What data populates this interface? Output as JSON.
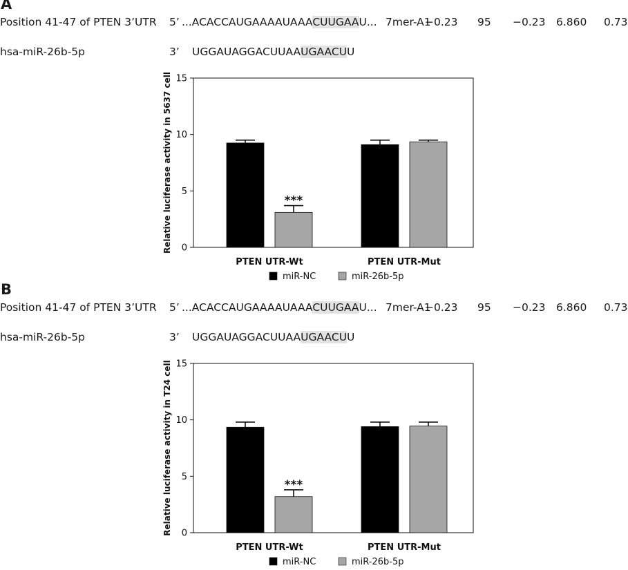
{
  "panels": [
    {
      "letter": "A",
      "site_label": "Position 41-47 of PTEN 3’UTR",
      "site_prime": "5’",
      "site_seq_pre": "...ACACCAUGAAAAUAAA",
      "site_seq_hl": "CUUGAA",
      "site_seq_post": "U...",
      "context": "7mer-A1",
      "score1": "−0.23",
      "score2": "95",
      "score3": "−0.23",
      "score4": "6.860",
      "score5": "0.73",
      "mir_label": "hsa-miR-26b-5p",
      "mir_prime": "3’",
      "mir_seq_pre": "UGGAUAGGACUUAA",
      "mir_seq_hl": "UGAACU",
      "mir_seq_post": "U"
    },
    {
      "letter": "B",
      "site_label": "Position 41-47 of PTEN 3’UTR",
      "site_prime": "5’",
      "site_seq_pre": "...ACACCAUGAAAAUAAA",
      "site_seq_hl": "CUUGAA",
      "site_seq_post": "U...",
      "context": "7mer-A1",
      "score1": "−0.23",
      "score2": "95",
      "score3": "−0.23",
      "score4": "6.860",
      "score5": "0.73",
      "mir_label": "hsa-miR-26b-5p",
      "mir_prime": "3’",
      "mir_seq_pre": "UGGAUAGGACUUAA",
      "mir_seq_hl": "UGAACU",
      "mir_seq_post": "U"
    }
  ],
  "chart_data": [
    {
      "type": "bar",
      "title": "",
      "xlabel": "",
      "ylabel": "Relative luciferase activity in 5637 cell",
      "ylim": [
        0,
        15
      ],
      "yticks": [
        "0",
        "5",
        "10",
        "15"
      ],
      "categories": [
        "PTEN UTR-Wt",
        "PTEN UTR-Mut"
      ],
      "series": [
        {
          "name": "miR-NC",
          "color": "#000000",
          "values": [
            9.25,
            9.1
          ],
          "errors": [
            0.25,
            0.4
          ]
        },
        {
          "name": "miR-26b-5p",
          "color": "#a6a6a6",
          "values": [
            3.1,
            9.35
          ],
          "errors": [
            0.6,
            0.15
          ]
        }
      ],
      "annotations": [
        {
          "text": "***",
          "category": 0,
          "series": 1
        }
      ],
      "legend_position": "bottom",
      "grid": false
    },
    {
      "type": "bar",
      "title": "",
      "xlabel": "",
      "ylabel": "Relative luciferase activity in T24 cell",
      "ylim": [
        0,
        15
      ],
      "yticks": [
        "0",
        "5",
        "10",
        "15"
      ],
      "categories": [
        "PTEN UTR-Wt",
        "PTEN UTR-Mut"
      ],
      "series": [
        {
          "name": "miR-NC",
          "color": "#000000",
          "values": [
            9.35,
            9.4
          ],
          "errors": [
            0.45,
            0.4
          ]
        },
        {
          "name": "miR-26b-5p",
          "color": "#a6a6a6",
          "values": [
            3.2,
            9.45
          ],
          "errors": [
            0.6,
            0.35
          ]
        }
      ],
      "annotations": [
        {
          "text": "***",
          "category": 0,
          "series": 1
        }
      ],
      "legend_position": "bottom",
      "grid": false
    }
  ]
}
